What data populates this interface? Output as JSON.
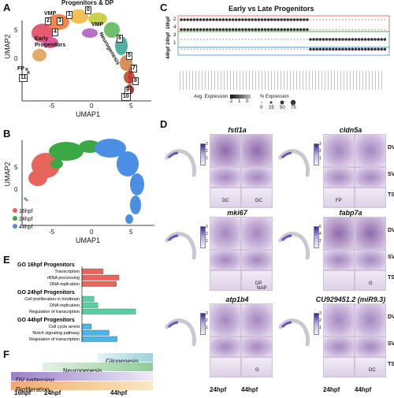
{
  "panels": {
    "a": "A",
    "b": "B",
    "c": "C",
    "d": "D",
    "e": "E",
    "f": "F"
  },
  "panel_a": {
    "xlabel": "UMAP1",
    "ylabel": "UMAP2",
    "x_ticks": [
      "-5",
      "0",
      "5"
    ],
    "y_ticks": [
      "5",
      "0"
    ],
    "labels": {
      "progenitors_dp": "Progenitors & DP",
      "vmp1": "VMP",
      "vmp2": "VMP",
      "early_progenitors": "Early Progenitors",
      "neurogenesis": "Neurogenesis",
      "neurons": "Neurons",
      "fp": "FP"
    },
    "clusters": [
      "0",
      "1",
      "2",
      "3",
      "4",
      "5",
      "6",
      "7",
      "8",
      "9",
      "10",
      "11"
    ]
  },
  "panel_b": {
    "xlabel": "UMAP1",
    "ylabel": "UMAP2",
    "x_ticks": [
      "-5",
      "0",
      "5"
    ],
    "y_ticks": [
      "5",
      "0"
    ],
    "legend": [
      {
        "label": "16hpf",
        "color": "#e8655b"
      },
      {
        "label": "24hpf",
        "color": "#3aa845"
      },
      {
        "label": "44hpf",
        "color": "#4a8fe3"
      }
    ]
  },
  "panel_c": {
    "title": "Early vs Late Progenitors",
    "row_labels": [
      "2",
      "4",
      "3",
      "1"
    ],
    "group_labels": [
      "16hpf",
      "24hpf",
      "44hpf"
    ],
    "legend_expr_title": "Avg. Expression",
    "legend_expr_ticks": [
      "2",
      "1",
      "0"
    ],
    "legend_pct_title": "% Expression",
    "legend_pct_ticks": [
      "0",
      "25",
      "50",
      "75"
    ]
  },
  "panel_d": {
    "genes": [
      {
        "name": "fstl1a",
        "cb_ticks": [
          "3",
          "2",
          "1"
        ],
        "annot_24": "DC",
        "annot_44": "DC"
      },
      {
        "name": "cldn5a",
        "cb_ticks": [
          "3",
          "2",
          "1"
        ],
        "annot_24": "FP",
        "annot_44": ""
      },
      {
        "name": "mki67",
        "cb_ticks": [
          "3",
          "2",
          "1"
        ],
        "annot_24": "",
        "annot_44": "DP",
        "annot_44b": "NAP"
      },
      {
        "name": "fabp7a",
        "cb_ticks": [
          "6",
          "4",
          "2"
        ],
        "annot_24": "",
        "annot_44": "G"
      },
      {
        "name": "atp1b4",
        "cb_ticks": [
          "3",
          "2",
          "1"
        ],
        "annot_24": "",
        "annot_44": "G"
      },
      {
        "name": "CU929451.2 (miR9.3)",
        "cb_ticks": [
          "3",
          "2",
          "1"
        ],
        "annot_24": "",
        "annot_44": "DC"
      }
    ],
    "view_labels": [
      "DV",
      "SV",
      "TS"
    ],
    "stage_labels": [
      "24hpf",
      "44hpf"
    ]
  },
  "panel_e": {
    "xlabel": "- Log10 (p-value)",
    "x_ticks": [
      "0",
      "2",
      "4",
      "6",
      "8",
      "10"
    ],
    "xlim": [
      0,
      10
    ],
    "groups": [
      {
        "title": "GO 16hpf Progenitors",
        "color": "#e8655b",
        "terms": [
          {
            "term": "Transcription",
            "value": 3.2
          },
          {
            "term": "rRNA processing",
            "value": 5.6
          },
          {
            "term": "DNA replication",
            "value": 5.2
          }
        ]
      },
      {
        "title": "GO 24hpf Progenitors",
        "color": "#58d0a4",
        "terms": [
          {
            "term": "Cell proliferation in hindbrain",
            "value": 1.8
          },
          {
            "term": "DNA replication",
            "value": 2.4
          },
          {
            "term": "Regulation of transcription",
            "value": 8.1
          }
        ]
      },
      {
        "title": "GO 44hpf Progenitors",
        "color": "#48b6e6",
        "terms": [
          {
            "term": "Cell cycle arrest",
            "value": 1.4
          },
          {
            "term": "Notch signaling pathway",
            "value": 4.1
          },
          {
            "term": "Regulation of transcription",
            "value": 5.3
          }
        ]
      }
    ]
  },
  "panel_f": {
    "bars": [
      {
        "label": "Gliogenesis",
        "color": "#b5dce5"
      },
      {
        "label": "Neurogenesis",
        "color": "#a8d6b0"
      },
      {
        "label": "DV patterning",
        "color": "#b39dd2"
      },
      {
        "label": "Proliferation",
        "color": "#f4c084"
      }
    ],
    "stages": [
      "16hpf",
      "24hpf",
      "44hpf"
    ]
  }
}
